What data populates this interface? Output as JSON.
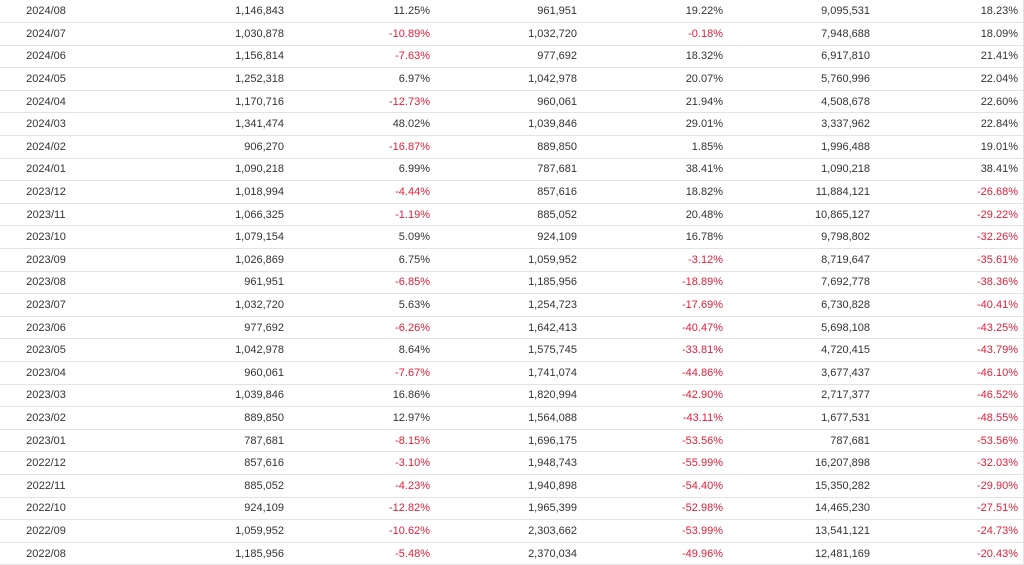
{
  "colors": {
    "negative": "#e0203a",
    "positive": "#333333",
    "border": "#e3e3e3"
  },
  "rows": [
    {
      "month": "2024/08",
      "v1": "1,146,843",
      "p1": "11.25%",
      "v2": "961,951",
      "p2": "19.22%",
      "v3": "9,095,531",
      "p3": "18.23%"
    },
    {
      "month": "2024/07",
      "v1": "1,030,878",
      "p1": "-10.89%",
      "v2": "1,032,720",
      "p2": "-0.18%",
      "v3": "7,948,688",
      "p3": "18.09%"
    },
    {
      "month": "2024/06",
      "v1": "1,156,814",
      "p1": "-7.63%",
      "v2": "977,692",
      "p2": "18.32%",
      "v3": "6,917,810",
      "p3": "21.41%"
    },
    {
      "month": "2024/05",
      "v1": "1,252,318",
      "p1": "6.97%",
      "v2": "1,042,978",
      "p2": "20.07%",
      "v3": "5,760,996",
      "p3": "22.04%"
    },
    {
      "month": "2024/04",
      "v1": "1,170,716",
      "p1": "-12.73%",
      "v2": "960,061",
      "p2": "21.94%",
      "v3": "4,508,678",
      "p3": "22.60%"
    },
    {
      "month": "2024/03",
      "v1": "1,341,474",
      "p1": "48.02%",
      "v2": "1,039,846",
      "p2": "29.01%",
      "v3": "3,337,962",
      "p3": "22.84%"
    },
    {
      "month": "2024/02",
      "v1": "906,270",
      "p1": "-16.87%",
      "v2": "889,850",
      "p2": "1.85%",
      "v3": "1,996,488",
      "p3": "19.01%"
    },
    {
      "month": "2024/01",
      "v1": "1,090,218",
      "p1": "6.99%",
      "v2": "787,681",
      "p2": "38.41%",
      "v3": "1,090,218",
      "p3": "38.41%"
    },
    {
      "month": "2023/12",
      "v1": "1,018,994",
      "p1": "-4.44%",
      "v2": "857,616",
      "p2": "18.82%",
      "v3": "11,884,121",
      "p3": "-26.68%"
    },
    {
      "month": "2023/11",
      "v1": "1,066,325",
      "p1": "-1.19%",
      "v2": "885,052",
      "p2": "20.48%",
      "v3": "10,865,127",
      "p3": "-29.22%"
    },
    {
      "month": "2023/10",
      "v1": "1,079,154",
      "p1": "5.09%",
      "v2": "924,109",
      "p2": "16.78%",
      "v3": "9,798,802",
      "p3": "-32.26%"
    },
    {
      "month": "2023/09",
      "v1": "1,026,869",
      "p1": "6.75%",
      "v2": "1,059,952",
      "p2": "-3.12%",
      "v3": "8,719,647",
      "p3": "-35.61%"
    },
    {
      "month": "2023/08",
      "v1": "961,951",
      "p1": "-6.85%",
      "v2": "1,185,956",
      "p2": "-18.89%",
      "v3": "7,692,778",
      "p3": "-38.36%"
    },
    {
      "month": "2023/07",
      "v1": "1,032,720",
      "p1": "5.63%",
      "v2": "1,254,723",
      "p2": "-17.69%",
      "v3": "6,730,828",
      "p3": "-40.41%"
    },
    {
      "month": "2023/06",
      "v1": "977,692",
      "p1": "-6.26%",
      "v2": "1,642,413",
      "p2": "-40.47%",
      "v3": "5,698,108",
      "p3": "-43.25%"
    },
    {
      "month": "2023/05",
      "v1": "1,042,978",
      "p1": "8.64%",
      "v2": "1,575,745",
      "p2": "-33.81%",
      "v3": "4,720,415",
      "p3": "-43.79%"
    },
    {
      "month": "2023/04",
      "v1": "960,061",
      "p1": "-7.67%",
      "v2": "1,741,074",
      "p2": "-44.86%",
      "v3": "3,677,437",
      "p3": "-46.10%"
    },
    {
      "month": "2023/03",
      "v1": "1,039,846",
      "p1": "16.86%",
      "v2": "1,820,994",
      "p2": "-42.90%",
      "v3": "2,717,377",
      "p3": "-46.52%"
    },
    {
      "month": "2023/02",
      "v1": "889,850",
      "p1": "12.97%",
      "v2": "1,564,088",
      "p2": "-43.11%",
      "v3": "1,677,531",
      "p3": "-48.55%"
    },
    {
      "month": "2023/01",
      "v1": "787,681",
      "p1": "-8.15%",
      "v2": "1,696,175",
      "p2": "-53.56%",
      "v3": "787,681",
      "p3": "-53.56%"
    },
    {
      "month": "2022/12",
      "v1": "857,616",
      "p1": "-3.10%",
      "v2": "1,948,743",
      "p2": "-55.99%",
      "v3": "16,207,898",
      "p3": "-32.03%"
    },
    {
      "month": "2022/11",
      "v1": "885,052",
      "p1": "-4.23%",
      "v2": "1,940,898",
      "p2": "-54.40%",
      "v3": "15,350,282",
      "p3": "-29.90%"
    },
    {
      "month": "2022/10",
      "v1": "924,109",
      "p1": "-12.82%",
      "v2": "1,965,399",
      "p2": "-52.98%",
      "v3": "14,465,230",
      "p3": "-27.51%"
    },
    {
      "month": "2022/09",
      "v1": "1,059,952",
      "p1": "-10.62%",
      "v2": "2,303,662",
      "p2": "-53.99%",
      "v3": "13,541,121",
      "p3": "-24.73%"
    },
    {
      "month": "2022/08",
      "v1": "1,185,956",
      "p1": "-5.48%",
      "v2": "2,370,034",
      "p2": "-49.96%",
      "v3": "12,481,169",
      "p3": "-20.43%"
    }
  ]
}
